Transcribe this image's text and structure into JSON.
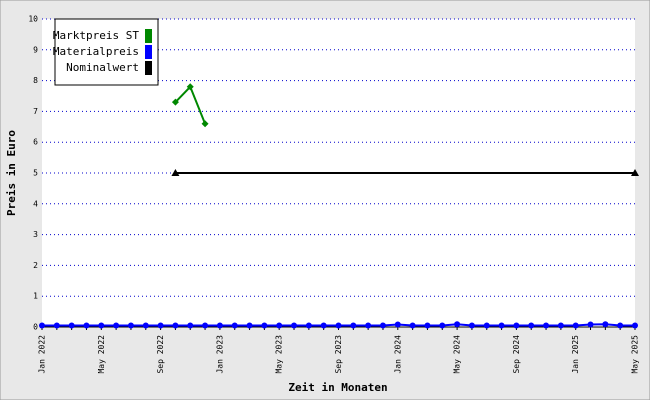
{
  "chart_data": {
    "type": "line",
    "ylabel": "Preis in Euro",
    "xlabel": "Zeit in Monaten",
    "categories": [
      "Jan 2022",
      null,
      null,
      null,
      "May 2022",
      null,
      null,
      null,
      "Sep 2022",
      null,
      null,
      null,
      "Jan 2023",
      null,
      null,
      null,
      "May 2023",
      null,
      null,
      null,
      "Sep 2023",
      null,
      null,
      null,
      "Jan 2024",
      null,
      null,
      null,
      "May 2024",
      null,
      null,
      null,
      "Sep 2024",
      null,
      null,
      null,
      "Jan 2025",
      null,
      null,
      null,
      "May 2025"
    ],
    "series": [
      {
        "name": "Marktpreis ST",
        "color": "#008800",
        "marker": "diamond",
        "values": [
          null,
          null,
          null,
          null,
          null,
          null,
          null,
          null,
          null,
          7.3,
          7.8,
          6.6,
          null,
          null,
          null,
          null,
          null,
          null,
          null,
          null,
          null,
          null,
          null,
          null,
          null,
          null,
          null,
          null,
          null,
          null,
          null,
          null,
          null,
          null,
          null,
          null,
          null,
          null,
          null,
          null,
          null
        ]
      },
      {
        "name": "Materialpreis",
        "color": "#0000ff",
        "marker": "circle",
        "values": [
          0.05,
          0.05,
          0.05,
          0.05,
          0.05,
          0.05,
          0.05,
          0.05,
          0.05,
          0.05,
          0.05,
          0.05,
          0.05,
          0.05,
          0.05,
          0.05,
          0.05,
          0.05,
          0.05,
          0.05,
          0.05,
          0.05,
          0.05,
          0.05,
          0.08,
          0.05,
          0.05,
          0.05,
          0.09,
          0.05,
          0.05,
          0.05,
          0.05,
          0.05,
          0.05,
          0.05,
          0.05,
          0.08,
          0.09,
          0.05,
          0.05
        ]
      },
      {
        "name": "Nominalwert",
        "color": "#000000",
        "marker": "triangle",
        "values": [
          null,
          null,
          null,
          null,
          null,
          null,
          null,
          null,
          null,
          5,
          5,
          5,
          5,
          5,
          5,
          5,
          5,
          5,
          5,
          5,
          5,
          5,
          5,
          5,
          5,
          5,
          5,
          5,
          5,
          5,
          5,
          5,
          5,
          5,
          5,
          5,
          5,
          5,
          5,
          5,
          5
        ]
      }
    ],
    "ylim": [
      0,
      10
    ],
    "yticks": [
      0,
      1,
      2,
      3,
      4,
      5,
      6,
      7,
      8,
      9,
      10
    ],
    "grid": true,
    "legend": "top-left"
  }
}
